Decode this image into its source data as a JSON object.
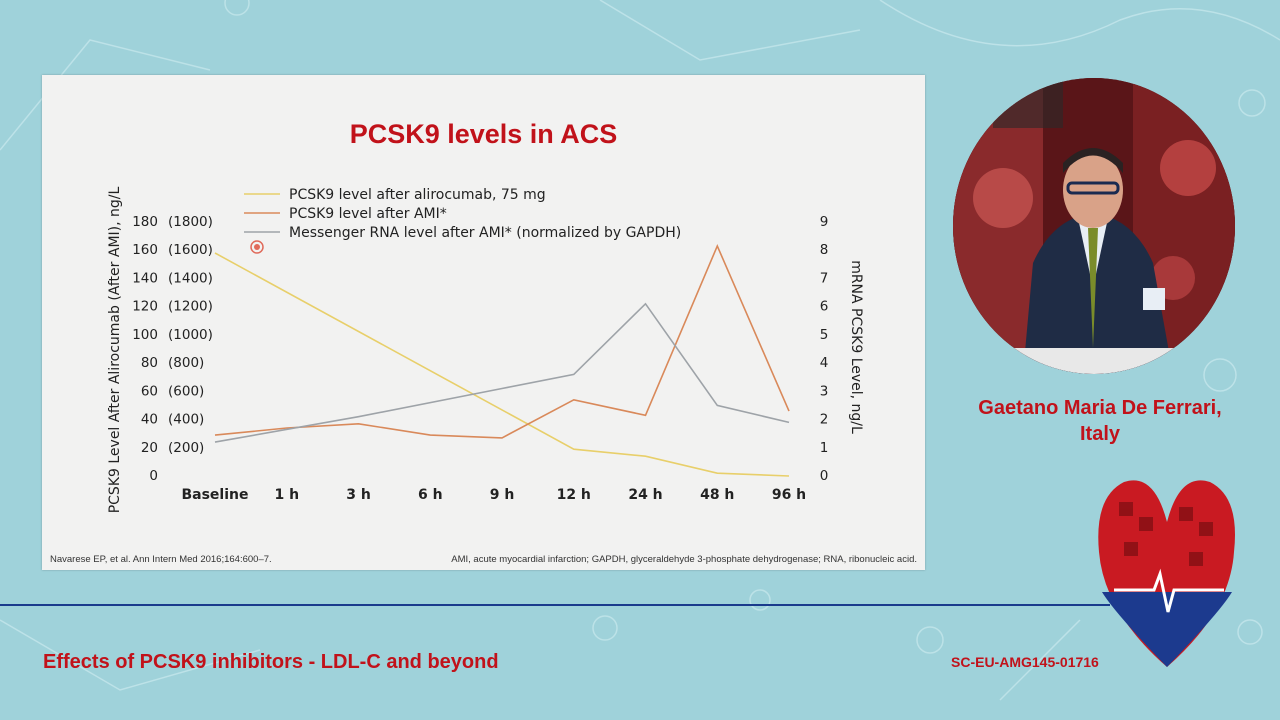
{
  "slide": {
    "title": "PCSK9 levels in ACS",
    "footnote_left": "Navarese EP, et al. Ann Intern Med 2016;164:600–7.",
    "footnote_right": "AMI, acute myocardial infarction; GAPDH, glyceraldehyde 3-phosphate dehydrogenase; RNA, ribonucleic acid."
  },
  "speaker": {
    "line1": "Gaetano Maria De Ferrari,",
    "line2": "Italy"
  },
  "footer": {
    "title": "Effects of PCSK9 inhibitors - LDL-C and beyond",
    "code": "SC-EU-AMG145-01716"
  },
  "chart_data": {
    "type": "line",
    "title": "",
    "categories": [
      "Baseline",
      "1 h",
      "3 h",
      "6 h",
      "9 h",
      "12 h",
      "24 h",
      "48 h",
      "96 h"
    ],
    "ylabel_left": "PCSK9 Level After Alirocumab (After AMI), ng/L",
    "ylabel_right": "mRNA PCSK9 Level, ng/L",
    "left_ticks": [
      "0",
      "20  (200)",
      "40  (400)",
      "60  (600)",
      "80  (800)",
      "100  (1000)",
      "120  (1200)",
      "140  (1400)",
      "160  (1600)",
      "180  (1800)"
    ],
    "right_ticks": [
      "0",
      "1",
      "2",
      "3",
      "4",
      "5",
      "6",
      "7",
      "8",
      "9"
    ],
    "ylim_left": [
      0,
      180
    ],
    "ylim_right": [
      0,
      9
    ],
    "grid": false,
    "legend_position": "top-left",
    "series": [
      {
        "name": "PCSK9 level after alirocumab, 75 mg",
        "color": "#e8cf6a",
        "axis": "left",
        "x": [
          "Baseline",
          "12 h",
          "24 h",
          "48 h",
          "96 h"
        ],
        "values": [
          158,
          19,
          14,
          2,
          0
        ]
      },
      {
        "name": "PCSK9 level after AMI*",
        "color": "#d9895a",
        "axis": "left",
        "x": [
          "Baseline",
          "1 h",
          "3 h",
          "6 h",
          "9 h",
          "12 h",
          "24 h",
          "48 h",
          "96 h"
        ],
        "values": [
          29,
          34,
          37,
          29,
          27,
          54,
          43,
          163,
          46
        ]
      },
      {
        "name": "Messenger RNA level after AMI* (normalized by GAPDH)",
        "color": "#9ea3a8",
        "axis": "right",
        "x": [
          "Baseline",
          "3 h",
          "9 h",
          "12 h",
          "24 h",
          "48 h",
          "96 h"
        ],
        "values": [
          1.2,
          2.1,
          3.1,
          3.6,
          6.1,
          2.5,
          1.9
        ]
      }
    ]
  }
}
